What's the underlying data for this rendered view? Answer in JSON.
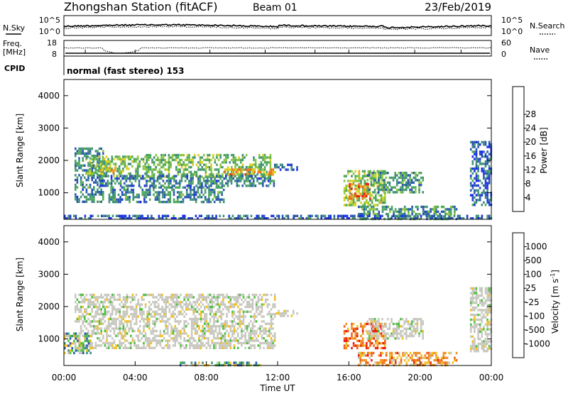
{
  "header": {
    "station": "Zhongshan Station (fitACF)",
    "beam": "Beam 01",
    "date": "23/Feb/2019"
  },
  "top_panels": {
    "nsky_label": "N.Sky",
    "nsky_ticks": [
      "10^5",
      "10^0"
    ],
    "nsearch_label": "N.Search",
    "nsearch_ticks": [
      "10^5",
      "10^0"
    ],
    "freq_label": "Freq.",
    "freq_unit": "[MHz]",
    "freq_ticks": [
      "18",
      "8"
    ],
    "nave_label": "Nave",
    "nave_ticks": [
      "60",
      "0"
    ],
    "cpid_label": "CPID",
    "cpid_text": "normal (fast stereo) 153"
  },
  "chart_data": [
    {
      "type": "heatmap",
      "title": "",
      "ylabel": "Slant Range [km]",
      "xlabel": "",
      "ylim": [
        180,
        4500
      ],
      "y_ticks": [
        "1000",
        "2000",
        "3000",
        "4000"
      ],
      "colorbar": {
        "label": "Power [dB]",
        "ticks": [
          "4",
          "8",
          "12",
          "16",
          "20",
          "24",
          "28"
        ],
        "colors": [
          "#1a2ee8",
          "#2a56b0",
          "#3f8f7a",
          "#4fa85a",
          "#8cc640",
          "#d8d020",
          "#f0a020",
          "#f07018",
          "#e82010"
        ]
      },
      "echo_regions": [
        {
          "t0": 0.6,
          "t1": 2.2,
          "r0": 700,
          "r1": 2400,
          "level": 0.25
        },
        {
          "t0": 1.2,
          "t1": 4.6,
          "r0": 1550,
          "r1": 2150,
          "level": 0.45
        },
        {
          "t0": 2.0,
          "t1": 3.0,
          "r0": 1600,
          "r1": 1800,
          "level": 0.7
        },
        {
          "t0": 4.6,
          "t1": 11.6,
          "r0": 1500,
          "r1": 2200,
          "level": 0.4
        },
        {
          "t0": 9.0,
          "t1": 11.8,
          "r0": 1550,
          "r1": 1750,
          "level": 0.75
        },
        {
          "t0": 2.0,
          "t1": 11.8,
          "r0": 1200,
          "r1": 1550,
          "level": 0.22
        },
        {
          "t0": 2.5,
          "t1": 9.0,
          "r0": 700,
          "r1": 1200,
          "level": 0.25
        },
        {
          "t0": 11.8,
          "t1": 13.1,
          "r0": 1700,
          "r1": 1900,
          "level": 0.1
        },
        {
          "t0": 15.7,
          "t1": 18.0,
          "r0": 600,
          "r1": 1700,
          "level": 0.5
        },
        {
          "t0": 16.0,
          "t1": 17.2,
          "r0": 800,
          "r1": 1300,
          "level": 0.85
        },
        {
          "t0": 17.0,
          "t1": 20.2,
          "r0": 1050,
          "r1": 1650,
          "level": 0.3
        },
        {
          "t0": 16.5,
          "t1": 22.0,
          "r0": 200,
          "r1": 600,
          "level": 0.3
        },
        {
          "t0": 22.8,
          "t1": 24.0,
          "r0": 600,
          "r1": 2600,
          "level": 0.15
        },
        {
          "t0": 0.0,
          "t1": 24.0,
          "r0": 180,
          "r1": 320,
          "level": 0.15
        }
      ]
    },
    {
      "type": "heatmap",
      "title": "",
      "ylabel": "Slant Range [km]",
      "xlabel": "Time UT",
      "ylim": [
        180,
        4500
      ],
      "y_ticks": [
        "1000",
        "2000",
        "3000",
        "4000"
      ],
      "x_ticks": [
        "00:00",
        "04:00",
        "08:00",
        "12:00",
        "16:00",
        "20:00",
        "00:00"
      ],
      "colorbar": {
        "label": "Velocity [m s",
        "label_sup": "-1",
        "label_close": "]",
        "ticks": [
          "1000",
          "500",
          "100",
          "25",
          "-25",
          "-100",
          "-500",
          "-1000"
        ],
        "colors": [
          "#1a2ee8",
          "#2a56b0",
          "#3f8f7a",
          "#4cc040",
          "#c8c8c0",
          "#f0c020",
          "#f09020",
          "#f06018",
          "#e82010"
        ]
      },
      "echo_regions": [
        {
          "t0": 0.6,
          "t1": 11.8,
          "r0": 700,
          "r1": 2400,
          "level": 0.5
        },
        {
          "t0": 11.8,
          "t1": 13.1,
          "r0": 1700,
          "r1": 1900,
          "level": 0.5
        },
        {
          "t0": 0.0,
          "t1": 1.5,
          "r0": 600,
          "r1": 1200,
          "level": 0.35
        },
        {
          "t0": 15.7,
          "t1": 18.0,
          "r0": 700,
          "r1": 1500,
          "level": 0.8
        },
        {
          "t0": 17.0,
          "t1": 20.2,
          "r0": 1000,
          "r1": 1650,
          "level": 0.5
        },
        {
          "t0": 16.5,
          "t1": 22.0,
          "r0": 200,
          "r1": 600,
          "level": 0.7
        },
        {
          "t0": 22.8,
          "t1": 24.0,
          "r0": 600,
          "r1": 2600,
          "level": 0.5
        },
        {
          "t0": 6.5,
          "t1": 11.0,
          "r0": 180,
          "r1": 300,
          "level": 0.35
        }
      ]
    }
  ]
}
